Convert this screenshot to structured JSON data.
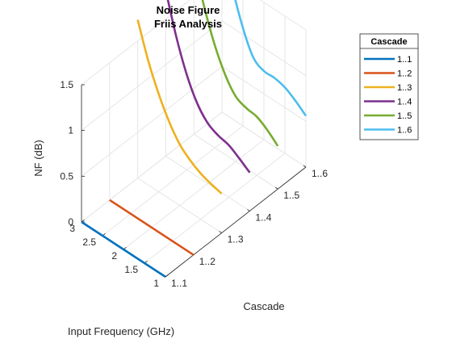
{
  "chart_data": {
    "type": "line",
    "view": "3d",
    "title_lines": [
      "Noise Figure",
      "Friis Analysis"
    ],
    "xlabel": "Input Frequency (GHz)",
    "ylabel": "Cascade",
    "zlabel": "NF (dB)",
    "x_ticks": [
      "1",
      "1.5",
      "2",
      "2.5",
      "3"
    ],
    "y_ticks": [
      "1..1",
      "1..2",
      "1..3",
      "1..4",
      "1..5",
      "1..6"
    ],
    "z_ticks": [
      "0",
      "0.5",
      "1",
      "1.5"
    ],
    "xlim": [
      1,
      3
    ],
    "ylim": [
      1,
      6
    ],
    "zlim": [
      0,
      1.5
    ],
    "grid": true,
    "legend": {
      "title": "Cascade",
      "placement": "top-right"
    },
    "series": [
      {
        "name": "1..1",
        "color": "#0072bd",
        "x": [
          1.0,
          1.5,
          2.0,
          2.5,
          3.0
        ],
        "y_index": 1,
        "z": [
          0.0,
          0.0,
          0.0,
          0.0,
          0.0
        ]
      },
      {
        "name": "1..2",
        "color": "#d95319",
        "x": [
          1.0,
          1.5,
          2.0,
          2.5,
          3.0
        ],
        "y_index": 2,
        "z": [
          0.0,
          0.0,
          0.0,
          0.0,
          0.0
        ]
      },
      {
        "name": "1..3",
        "color": "#edb120",
        "x": [
          1.0,
          1.25,
          1.5,
          1.75,
          2.0,
          2.25,
          2.5,
          2.75,
          3.0
        ],
        "y_index": 3,
        "z": [
          0.43,
          0.46,
          0.5,
          0.57,
          0.67,
          0.84,
          1.07,
          1.36,
          1.73
        ]
      },
      {
        "name": "1..4",
        "color": "#7e2f8e",
        "x": [
          1.0,
          1.25,
          1.5,
          1.75,
          2.0,
          2.25,
          2.5,
          2.75,
          3.0
        ],
        "y_index": 4,
        "z": [
          0.42,
          0.5,
          0.57,
          0.6,
          0.66,
          0.8,
          1.04,
          1.38,
          1.81
        ]
      },
      {
        "name": "1..5",
        "color": "#77ac30",
        "x": [
          1.0,
          1.25,
          1.5,
          1.75,
          2.0,
          2.25,
          2.5,
          2.75,
          3.0
        ],
        "y_index": 5,
        "z": [
          0.47,
          0.57,
          0.64,
          0.66,
          0.71,
          0.87,
          1.12,
          1.46,
          1.87
        ]
      },
      {
        "name": "1..6",
        "color": "#4dbeee",
        "x": [
          1.0,
          1.25,
          1.5,
          1.75,
          2.0,
          2.25,
          2.5,
          2.75,
          3.0
        ],
        "y_index": 6,
        "z": [
          0.56,
          0.65,
          0.72,
          0.75,
          0.75,
          0.82,
          1.07,
          1.43,
          1.86
        ]
      }
    ]
  }
}
